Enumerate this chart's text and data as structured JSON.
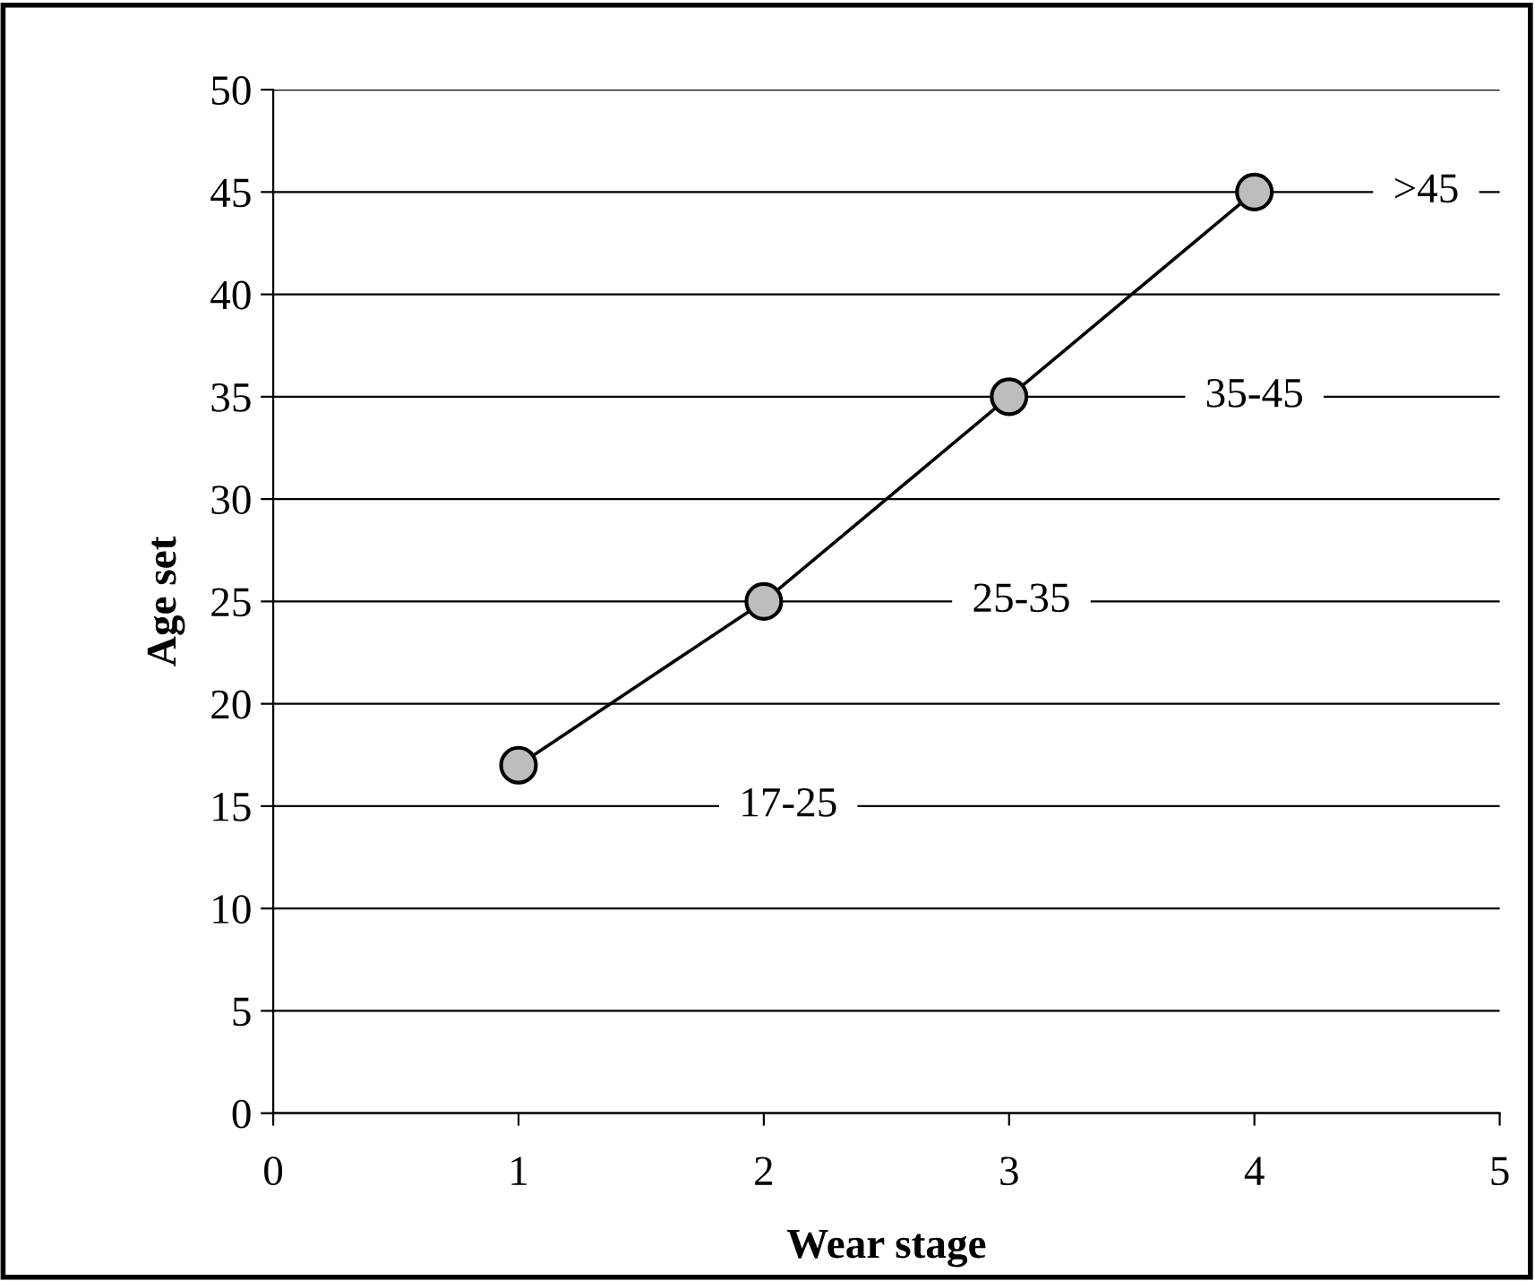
{
  "chart_data": {
    "type": "line",
    "xlabel": "Wear stage",
    "ylabel": "Age set",
    "x": [
      1,
      2,
      3,
      4
    ],
    "series": [
      {
        "color": "#000000",
        "values": [
          17,
          25,
          35,
          45
        ]
      }
    ],
    "marker": "circle",
    "line_style": "solid",
    "xlim": [
      0,
      5
    ],
    "xticks": [
      0,
      1,
      2,
      3,
      4,
      5
    ],
    "ylim": [
      0,
      50
    ],
    "yticks": [
      0,
      5,
      10,
      15,
      20,
      25,
      30,
      35,
      40,
      45,
      50
    ],
    "grid": "y",
    "legend": false,
    "annotations": [
      "17-25",
      "25-35",
      "35-45",
      ">45"
    ]
  }
}
